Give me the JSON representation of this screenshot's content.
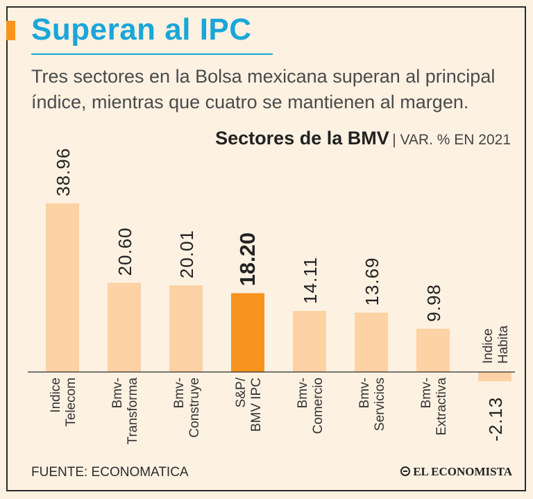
{
  "header": {
    "title": "Superan al IPC",
    "subtitle": "Tres sectores en la Bolsa mexicana superan al principal\níndice, mientras que cuatro se mantienen al margen."
  },
  "chart_header": {
    "title": "Sectores de la BMV",
    "subtitle": "| VAR. % EN 2021"
  },
  "footer": {
    "source": "FUENTE: ECONOMATICA",
    "logo": "EL ECONOMISTA"
  },
  "colors": {
    "title": "#1aa6d8",
    "accent": "#f7941d",
    "bar": "#fdd2a4",
    "highlight_bar": "#f7941d",
    "background": "#fdf1e2"
  },
  "chart_data": {
    "type": "bar",
    "title": "Sectores de la BMV",
    "ylabel": "VAR. % EN 2021",
    "xlabel": "",
    "categories": [
      [
        "Indice",
        "Telecom"
      ],
      [
        "Bmv-",
        "Transforma"
      ],
      [
        "Bmv-",
        "Construye"
      ],
      [
        "S&P/",
        "BMV IPC"
      ],
      [
        "Bmv-",
        "Comercio"
      ],
      [
        "Bmv-",
        "Servicios"
      ],
      [
        "Bmv-",
        "Extractiva"
      ],
      [
        "Indice",
        "Habita"
      ]
    ],
    "values": [
      38.96,
      20.6,
      20.01,
      18.2,
      14.11,
      13.69,
      9.98,
      -2.13
    ],
    "value_labels": [
      "38.96",
      "20.60",
      "20.01",
      "18.20",
      "14.11",
      "13.69",
      "9.98",
      "-2.13"
    ],
    "highlight_index": 3,
    "ylim": [
      -3,
      40
    ],
    "grid": false,
    "legend": "none"
  }
}
